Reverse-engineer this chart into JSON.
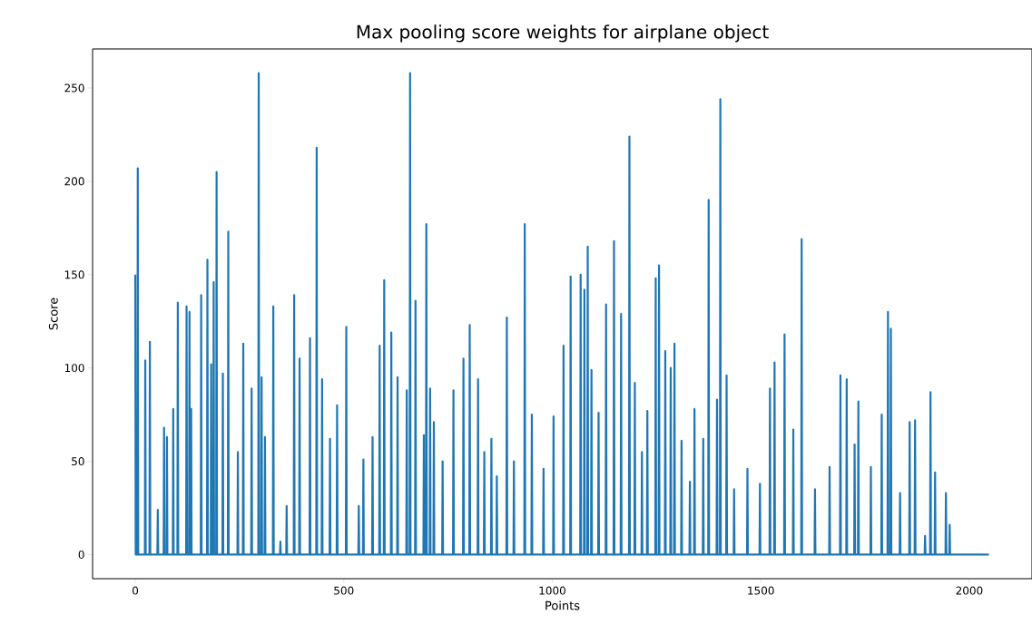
{
  "chart_data": {
    "type": "line",
    "title": "Max pooling score weights for airplane object",
    "xlabel": "Points",
    "ylabel": "Score",
    "color": "#1f77b4",
    "xlim": [
      -102.4,
      2150.4
    ],
    "ylim": [
      -12.9,
      270.9
    ],
    "xticks": [
      0,
      500,
      1000,
      1500,
      2000
    ],
    "yticks": [
      0,
      50,
      100,
      150,
      200,
      250
    ],
    "x": [
      0,
      1,
      5,
      6,
      7,
      23,
      24,
      25,
      34,
      35,
      36,
      53,
      54,
      55,
      68,
      69,
      70,
      75,
      76,
      77,
      90,
      91,
      92,
      101,
      102,
      103,
      122,
      123,
      124,
      129,
      130,
      131,
      133,
      134,
      135,
      157,
      158,
      159,
      172,
      173,
      174,
      181,
      182,
      183,
      187,
      188,
      189,
      194,
      195,
      196,
      209,
      210,
      211,
      222,
      223,
      224,
      245,
      246,
      247,
      258,
      259,
      260,
      278,
      279,
      280,
      295,
      296,
      297,
      302,
      303,
      304,
      310,
      311,
      312,
      330,
      331,
      332,
      347,
      348,
      349,
      362,
      363,
      364,
      380,
      381,
      382,
      393,
      394,
      395,
      418,
      419,
      420,
      434,
      435,
      436,
      447,
      448,
      449,
      466,
      467,
      468,
      483,
      484,
      485,
      505,
      506,
      507,
      535,
      536,
      537,
      546,
      547,
      548,
      568,
      569,
      570,
      585,
      586,
      587,
      596,
      597,
      598,
      613,
      614,
      615,
      628,
      629,
      630,
      650,
      651,
      652,
      658,
      659,
      660,
      671,
      672,
      673,
      691,
      692,
      693,
      697,
      698,
      699,
      706,
      707,
      708,
      715,
      716,
      717,
      736,
      737,
      738,
      762,
      763,
      764,
      786,
      787,
      788,
      801,
      802,
      803,
      821,
      822,
      823,
      836,
      837,
      838,
      853,
      854,
      855,
      866,
      867,
      868,
      890,
      891,
      892,
      907,
      908,
      909,
      933,
      934,
      935,
      950,
      951,
      952,
      978,
      979,
      980,
      1002,
      1003,
      1004,
      1026,
      1027,
      1028,
      1043,
      1044,
      1045,
      1067,
      1068,
      1069,
      1076,
      1077,
      1078,
      1084,
      1085,
      1086,
      1093,
      1094,
      1095,
      1110,
      1111,
      1112,
      1128,
      1129,
      1130,
      1147,
      1148,
      1149,
      1164,
      1165,
      1166,
      1184,
      1185,
      1186,
      1197,
      1198,
      1199,
      1214,
      1215,
      1216,
      1227,
      1228,
      1229,
      1247,
      1248,
      1249,
      1255,
      1256,
      1257,
      1270,
      1271,
      1272,
      1283,
      1284,
      1285,
      1292,
      1293,
      1294,
      1309,
      1310,
      1311,
      1329,
      1330,
      1331,
      1340,
      1341,
      1342,
      1361,
      1362,
      1363,
      1374,
      1375,
      1376,
      1394,
      1395,
      1396,
      1402,
      1403,
      1404,
      1417,
      1418,
      1419,
      1435,
      1436,
      1437,
      1467,
      1468,
      1469,
      1497,
      1498,
      1499,
      1521,
      1522,
      1523,
      1532,
      1533,
      1534,
      1556,
      1557,
      1558,
      1577,
      1578,
      1579,
      1597,
      1598,
      1599,
      1629,
      1630,
      1631,
      1664,
      1665,
      1666,
      1690,
      1691,
      1692,
      1705,
      1706,
      1707,
      1724,
      1725,
      1726,
      1733,
      1734,
      1735,
      1763,
      1764,
      1765,
      1789,
      1790,
      1791,
      1804,
      1805,
      1806,
      1811,
      1812,
      1813,
      1833,
      1834,
      1835,
      1856,
      1857,
      1858,
      1869,
      1870,
      1871,
      1893,
      1894,
      1895,
      1906,
      1907,
      1908,
      1917,
      1918,
      1919,
      1943,
      1944,
      1945,
      1952,
      1953,
      1954,
      2047
    ],
    "values": [
      150,
      0,
      0,
      207,
      0,
      0,
      104,
      0,
      0,
      114,
      0,
      0,
      24,
      0,
      0,
      68,
      0,
      0,
      63,
      0,
      0,
      78,
      0,
      0,
      135,
      0,
      0,
      133,
      0,
      0,
      130,
      0,
      0,
      78,
      0,
      0,
      139,
      0,
      0,
      158,
      0,
      0,
      102,
      0,
      0,
      146,
      0,
      0,
      205,
      0,
      0,
      97,
      0,
      0,
      173,
      0,
      0,
      55,
      0,
      0,
      113,
      0,
      0,
      89,
      0,
      0,
      258,
      0,
      0,
      95,
      0,
      0,
      63,
      0,
      0,
      133,
      0,
      0,
      7,
      0,
      0,
      26,
      0,
      0,
      139,
      0,
      0,
      105,
      0,
      0,
      116,
      0,
      0,
      218,
      0,
      0,
      94,
      0,
      0,
      62,
      0,
      0,
      80,
      0,
      0,
      122,
      0,
      0,
      26,
      0,
      0,
      51,
      0,
      0,
      63,
      0,
      0,
      112,
      0,
      0,
      147,
      0,
      0,
      119,
      0,
      0,
      95,
      0,
      0,
      88,
      0,
      0,
      258,
      0,
      0,
      136,
      0,
      0,
      64,
      0,
      0,
      177,
      0,
      0,
      89,
      0,
      0,
      71,
      0,
      0,
      50,
      0,
      0,
      88,
      0,
      0,
      105,
      0,
      0,
      123,
      0,
      0,
      94,
      0,
      0,
      55,
      0,
      0,
      62,
      0,
      0,
      42,
      0,
      0,
      127,
      0,
      0,
      50,
      0,
      0,
      177,
      0,
      0,
      75,
      0,
      0,
      46,
      0,
      0,
      74,
      0,
      0,
      112,
      0,
      0,
      149,
      0,
      0,
      150,
      0,
      0,
      142,
      0,
      0,
      165,
      0,
      0,
      99,
      0,
      0,
      76,
      0,
      0,
      134,
      0,
      0,
      168,
      0,
      0,
      129,
      0,
      0,
      224,
      0,
      0,
      92,
      0,
      0,
      55,
      0,
      0,
      77,
      0,
      0,
      148,
      0,
      0,
      155,
      0,
      0,
      109,
      0,
      0,
      100,
      0,
      0,
      113,
      0,
      0,
      61,
      0,
      0,
      39,
      0,
      0,
      78,
      0,
      0,
      62,
      0,
      0,
      190,
      0,
      0,
      83,
      0,
      0,
      244,
      0,
      0,
      96,
      0,
      0,
      35,
      0,
      0,
      46,
      0,
      0,
      38,
      0,
      0,
      89,
      0,
      0,
      103,
      0,
      0,
      118,
      0,
      0,
      67,
      0,
      0,
      169,
      0,
      0,
      35,
      0,
      0,
      47,
      0,
      0,
      96,
      0,
      0,
      94,
      0,
      0,
      59,
      0,
      0,
      82,
      0,
      0,
      47,
      0,
      0,
      75,
      0,
      0,
      130,
      0,
      0,
      121,
      0,
      0,
      33,
      0,
      0,
      71,
      0,
      0,
      72,
      0,
      0,
      10,
      0,
      0,
      87,
      0,
      0,
      44,
      0,
      0,
      33,
      0,
      0,
      16,
      0,
      0
    ]
  }
}
